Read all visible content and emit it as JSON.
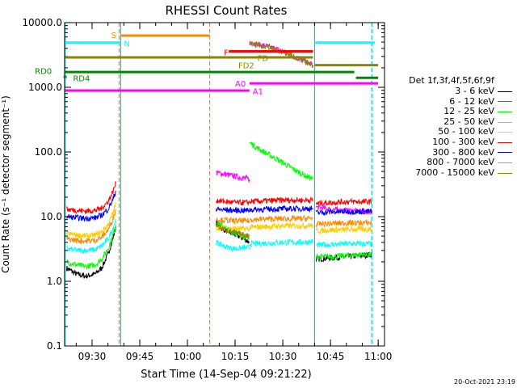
{
  "chart_data": {
    "type": "line",
    "title": "RHESSI Count Rates",
    "xlabel": "Start Time (14-Sep-04 09:21:22)",
    "ylabel": "Count Rate (s⁻¹ detector segment⁻¹)",
    "yscale": "log",
    "ylim": [
      0.1,
      10000
    ],
    "y_ticks": [
      "0.1",
      "1.0",
      "10.0",
      "100.0",
      "1000.0",
      "10000.0"
    ],
    "xlim": [
      "09:21:22",
      "11:02:00"
    ],
    "x_ticks": [
      "09:30",
      "09:45",
      "10:00",
      "10:15",
      "10:30",
      "10:45",
      "11:00"
    ],
    "legend_title": "Det 1f,3f,4f,5f,6f,9f",
    "legend_position": "right",
    "footer": "20-Oct-2021 23:19",
    "series": [
      {
        "name": "3 - 6 keV",
        "color": "#000000",
        "segments": [
          [
            [
              "09:22:00",
              1.6
            ],
            [
              "09:25:00",
              1.3
            ],
            [
              "09:28:00",
              1.2
            ],
            [
              "09:31:00",
              1.3
            ],
            [
              "09:33:00",
              1.6
            ],
            [
              "09:35:00",
              2.6
            ],
            [
              "09:36:30",
              4.5
            ],
            [
              "09:37:30",
              7.0
            ]
          ],
          [
            [
              "10:09:00",
              8.2
            ],
            [
              "10:11:00",
              6.5
            ],
            [
              "10:14:00",
              5.5
            ],
            [
              "10:17:00",
              4.8
            ],
            [
              "10:19:30",
              4.0
            ]
          ],
          [
            [
              "10:40:30",
              2.2
            ],
            [
              "10:45:00",
              2.3
            ],
            [
              "10:50:00",
              2.4
            ],
            [
              "10:55:00",
              2.5
            ],
            [
              "10:58:00",
              2.6
            ]
          ]
        ]
      },
      {
        "name": "6 - 12 keV",
        "color": "#ff00ff",
        "segments": [
          [
            [
              "10:09:00",
              48
            ],
            [
              "10:12:00",
              45
            ],
            [
              "10:15:00",
              42
            ],
            [
              "10:17:00",
              40
            ],
            [
              "10:19:30",
              38
            ]
          ],
          [
            [
              "10:19:30",
              5000
            ],
            [
              "10:22:00",
              4600
            ],
            [
              "10:25:00",
              4300
            ],
            [
              "10:28:00",
              3900
            ],
            [
              "10:31:00",
              3400
            ],
            [
              "10:34:00",
              2900
            ],
            [
              "10:37:00",
              2500
            ],
            [
              "10:39:30",
              2200
            ]
          ],
          [
            [
              "10:40:30",
              14
            ],
            [
              "10:45:00",
              13
            ],
            [
              "10:50:00",
              12.5
            ],
            [
              "10:55:00",
              12
            ],
            [
              "10:58:00",
              12
            ]
          ]
        ]
      },
      {
        "name": "12 - 25 keV",
        "color": "#00ff00",
        "segments": [
          [
            [
              "09:22:00",
              2.0
            ],
            [
              "09:25:00",
              1.8
            ],
            [
              "09:28:00",
              1.7
            ],
            [
              "09:31:00",
              1.8
            ],
            [
              "09:33:00",
              2.2
            ],
            [
              "09:35:00",
              3.2
            ],
            [
              "09:36:30",
              5.0
            ],
            [
              "09:37:30",
              7.5
            ]
          ],
          [
            [
              "10:09:00",
              8.5
            ],
            [
              "10:11:00",
              7.0
            ],
            [
              "10:14:00",
              5.8
            ],
            [
              "10:17:00",
              5.2
            ],
            [
              "10:19:30",
              4.6
            ]
          ],
          [
            [
              "10:19:30",
              140
            ],
            [
              "10:22:00",
              115
            ],
            [
              "10:25:00",
              95
            ],
            [
              "10:28:00",
              78
            ],
            [
              "10:31:00",
              64
            ],
            [
              "10:34:00",
              52
            ],
            [
              "10:37:00",
              43
            ],
            [
              "10:39:30",
              38
            ]
          ],
          [
            [
              "10:40:30",
              2.4
            ],
            [
              "10:45:00",
              2.4
            ],
            [
              "10:50:00",
              2.5
            ],
            [
              "10:55:00",
              2.6
            ],
            [
              "10:58:00",
              2.6
            ]
          ]
        ]
      },
      {
        "name": "25 - 50 keV",
        "color": "#00ffff",
        "segments": [
          [
            [
              "09:22:00",
              3.2
            ],
            [
              "09:25:00",
              3.0
            ],
            [
              "09:28:00",
              3.0
            ],
            [
              "09:31:00",
              3.1
            ],
            [
              "09:33:00",
              3.5
            ],
            [
              "09:35:00",
              4.5
            ],
            [
              "09:36:30",
              6.5
            ],
            [
              "09:37:30",
              9.0
            ]
          ],
          [
            [
              "10:09:00",
              4.0
            ],
            [
              "10:12:00",
              3.4
            ],
            [
              "10:15:00",
              3.2
            ],
            [
              "10:19:30",
              3.3
            ]
          ],
          [
            [
              "10:19:30",
              3.8
            ],
            [
              "10:25:00",
              3.9
            ],
            [
              "10:30:00",
              4.0
            ],
            [
              "10:35:00",
              4.0
            ],
            [
              "10:39:30",
              4.1
            ]
          ],
          [
            [
              "10:40:30",
              3.6
            ],
            [
              "10:45:00",
              3.7
            ],
            [
              "10:50:00",
              3.8
            ],
            [
              "10:55:00",
              3.8
            ],
            [
              "10:58:00",
              3.8
            ]
          ]
        ]
      },
      {
        "name": "50 - 100 keV",
        "color": "#ffcc00",
        "segments": [
          [
            [
              "09:22:00",
              5.5
            ],
            [
              "09:25:00",
              5.2
            ],
            [
              "09:28:00",
              5.0
            ],
            [
              "09:31:00",
              5.2
            ],
            [
              "09:33:00",
              5.8
            ],
            [
              "09:35:00",
              7.5
            ],
            [
              "09:36:30",
              11
            ],
            [
              "09:37:30",
              16
            ]
          ],
          [
            [
              "10:09:00",
              6.8
            ],
            [
              "10:12:00",
              6.6
            ],
            [
              "10:15:00",
              6.5
            ],
            [
              "10:19:30",
              6.5
            ]
          ],
          [
            [
              "10:19:30",
              6.8
            ],
            [
              "10:25:00",
              7.0
            ],
            [
              "10:30:00",
              7.2
            ],
            [
              "10:35:00",
              7.2
            ],
            [
              "10:39:30",
              7.3
            ]
          ],
          [
            [
              "10:40:30",
              6.0
            ],
            [
              "10:45:00",
              6.2
            ],
            [
              "10:50:00",
              6.3
            ],
            [
              "10:55:00",
              6.4
            ],
            [
              "10:58:00",
              6.4
            ]
          ]
        ]
      },
      {
        "name": "100 - 300 keV",
        "color": "#ff0000",
        "segments": [
          [
            [
              "09:22:00",
              13
            ],
            [
              "09:25:00",
              12.5
            ],
            [
              "09:28:00",
              12.2
            ],
            [
              "09:31:00",
              12.5
            ],
            [
              "09:33:00",
              13.5
            ],
            [
              "09:35:00",
              17
            ],
            [
              "09:36:30",
              24
            ],
            [
              "09:37:30",
              33
            ]
          ],
          [
            [
              "10:09:00",
              18
            ],
            [
              "10:12:00",
              17
            ],
            [
              "10:15:00",
              16.5
            ],
            [
              "10:19:30",
              16.5
            ]
          ],
          [
            [
              "10:19:30",
              17
            ],
            [
              "10:25:00",
              17.5
            ],
            [
              "10:30:00",
              18
            ],
            [
              "10:35:00",
              18
            ],
            [
              "10:39:30",
              18
            ]
          ],
          [
            [
              "10:40:30",
              16
            ],
            [
              "10:45:00",
              16.5
            ],
            [
              "10:50:00",
              17
            ],
            [
              "10:55:00",
              17
            ],
            [
              "10:58:00",
              17
            ]
          ]
        ]
      },
      {
        "name": "300 - 800 keV",
        "color": "#0000ff",
        "segments": [
          [
            [
              "09:22:00",
              10
            ],
            [
              "09:25:00",
              9.6
            ],
            [
              "09:28:00",
              9.4
            ],
            [
              "09:31:00",
              9.6
            ],
            [
              "09:33:00",
              10.5
            ],
            [
              "09:35:00",
              13
            ],
            [
              "09:36:30",
              18
            ],
            [
              "09:37:30",
              25
            ]
          ],
          [
            [
              "10:09:00",
              13
            ],
            [
              "10:12:00",
              12.7
            ],
            [
              "10:15:00",
              12.5
            ],
            [
              "10:19:30",
              12.5
            ]
          ],
          [
            [
              "10:19:30",
              12.8
            ],
            [
              "10:25:00",
              13
            ],
            [
              "10:30:00",
              13.2
            ],
            [
              "10:35:00",
              13.3
            ],
            [
              "10:39:30",
              13.4
            ]
          ],
          [
            [
              "10:40:30",
              11.5
            ],
            [
              "10:45:00",
              11.8
            ],
            [
              "10:50:00",
              12
            ],
            [
              "10:55:00",
              12
            ],
            [
              "10:58:00",
              12
            ]
          ]
        ]
      },
      {
        "name": "800 - 7000 keV",
        "color": "#ff8800",
        "segments": [
          [
            [
              "09:22:00",
              4.5
            ],
            [
              "09:25:00",
              4.3
            ],
            [
              "09:28:00",
              4.2
            ],
            [
              "09:31:00",
              4.3
            ],
            [
              "09:33:00",
              4.8
            ],
            [
              "09:35:00",
              6.2
            ],
            [
              "09:36:30",
              9.0
            ],
            [
              "09:37:30",
              13
            ]
          ],
          [
            [
              "10:09:00",
              9.0
            ],
            [
              "10:12:00",
              8.8
            ],
            [
              "10:15:00",
              8.6
            ],
            [
              "10:19:30",
              8.6
            ]
          ],
          [
            [
              "10:19:30",
              9.0
            ],
            [
              "10:25:00",
              9.2
            ],
            [
              "10:30:00",
              9.3
            ],
            [
              "10:35:00",
              9.3
            ],
            [
              "10:39:30",
              9.4
            ]
          ],
          [
            [
              "10:40:30",
              7.6
            ],
            [
              "10:45:00",
              7.8
            ],
            [
              "10:50:00",
              8.0
            ],
            [
              "10:55:00",
              8.0
            ],
            [
              "10:58:00",
              8.0
            ]
          ]
        ]
      },
      {
        "name": "7000 - 15000 keV",
        "color": "#888800",
        "segments": [
          [
            [
              "10:09:00",
              7.5
            ],
            [
              "10:11:00",
              6.5
            ],
            [
              "10:14:00",
              5.8
            ],
            [
              "10:17:00",
              5.3
            ],
            [
              "10:19:30",
              5.0
            ]
          ],
          [
            [
              "10:19:30",
              4900
            ],
            [
              "10:25:00",
              4200
            ],
            [
              "10:30:00",
              3500
            ],
            [
              "10:35:00",
              2800
            ],
            [
              "10:39:30",
              2200
            ]
          ]
        ]
      }
    ],
    "annotations": {
      "vlines": [
        {
          "time": "09:21:30",
          "color": "#00cccc",
          "style": "solid"
        },
        {
          "time": "09:38:30",
          "color": "#ff8800",
          "style": "dashed"
        },
        {
          "time": "09:39:00",
          "color": "#00cccc",
          "style": "solid"
        },
        {
          "time": "10:07:00",
          "color": "#ff8800",
          "style": "dashed"
        },
        {
          "time": "10:40:00",
          "color": "#00cccc",
          "style": "solid"
        },
        {
          "time": "10:58:00",
          "color": "#00cccc",
          "style": "dashed"
        }
      ],
      "bars": [
        {
          "label": "S",
          "label_time": "09:36:00",
          "label_value": 6500,
          "color": "#ff8800",
          "segments": [
            [
              "09:39:00",
              "10:07:00",
              6300
            ]
          ]
        },
        {
          "label": "N",
          "label_time": "09:40:00",
          "label_value": 4800,
          "color": "#00ffff",
          "segments": [
            [
              "09:21:30",
              "09:39:00",
              4900
            ],
            [
              "10:40:00",
              "10:59:00",
              4900
            ]
          ]
        },
        {
          "label": "F",
          "label_time": "10:11:30",
          "label_value": 3500,
          "color": "#ff0000",
          "segments": [
            [
              "10:13:00",
              "10:39:30",
              3600
            ]
          ]
        },
        {
          "label": "FD",
          "label_time": "10:22:00",
          "label_value": 2850,
          "color": "#888800",
          "segments": [
            [
              "09:21:30",
              "10:39:30",
              2900
            ]
          ]
        },
        {
          "label": "FD2",
          "label_time": "10:16:00",
          "label_value": 2200,
          "color": "#888800",
          "segments": [
            [
              "10:40:00",
              "11:00:00",
              2200
            ]
          ]
        },
        {
          "label": "RD0",
          "label_time": "09:12:00",
          "label_value": 1800,
          "color": "#008800",
          "segments": [
            [
              "09:21:30",
              "10:52:30",
              1720
            ]
          ]
        },
        {
          "label": "RD4",
          "label_time": "09:24:00",
          "label_value": 1400,
          "color": "#008800",
          "segments": [
            [
              "09:21:00",
              "09:22:00",
              1450
            ],
            [
              "10:53:00",
              "11:00:00",
              1400
            ]
          ]
        },
        {
          "label": "A0",
          "label_time": "10:15:00",
          "label_value": 1150,
          "color": "#ff00ff",
          "segments": [
            [
              "10:19:30",
              "11:00:00",
              1150
            ]
          ]
        },
        {
          "label": "A1",
          "label_time": "10:20:30",
          "label_value": 880,
          "color": "#ff00ff",
          "segments": [
            [
              "09:21:30",
              "10:19:30",
              890
            ]
          ]
        }
      ]
    }
  }
}
